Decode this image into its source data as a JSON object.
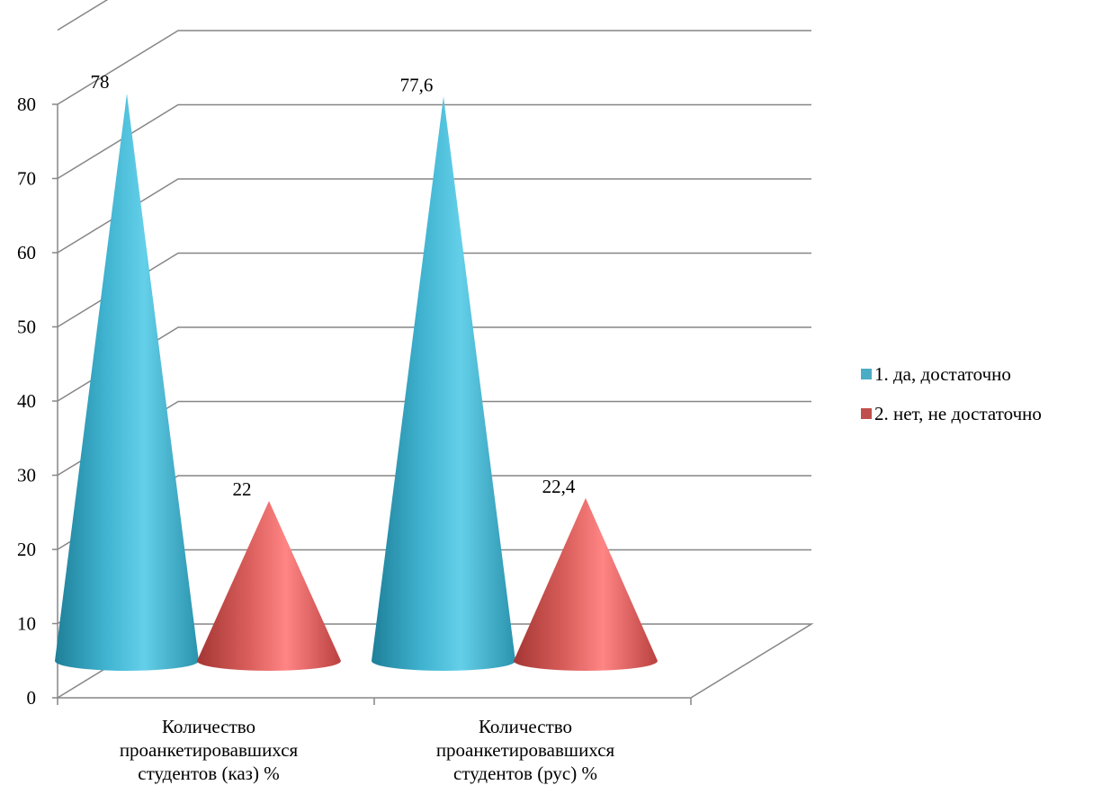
{
  "chart_data": {
    "type": "bar",
    "subtype": "3d-cone",
    "categories": [
      [
        "Количество",
        "проанкетировавшихся",
        "студентов (каз) %"
      ],
      [
        "Количество",
        "проанкетировавшихся",
        "студентов (рус) %"
      ]
    ],
    "series": [
      {
        "name": "1. да, достаточно",
        "values": [
          78,
          77.6
        ],
        "labels": [
          "78",
          "77,6"
        ],
        "color": "#4BACC6"
      },
      {
        "name": "2. нет, не достаточно",
        "values": [
          22,
          22.4
        ],
        "labels": [
          "22",
          "22,4"
        ],
        "color": "#C0504D"
      }
    ],
    "yticks": [
      0,
      10,
      20,
      30,
      40,
      50,
      60,
      70,
      80
    ],
    "ylim": [
      0,
      80
    ],
    "grid": true,
    "legend": "right"
  }
}
